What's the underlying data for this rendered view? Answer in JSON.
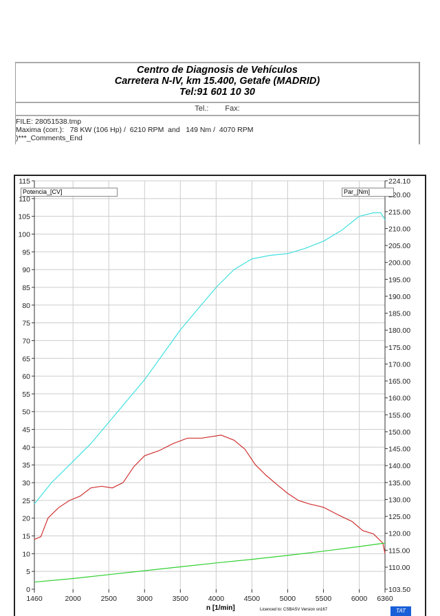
{
  "header": {
    "line1": "Centro de Diagnosis de Vehículos",
    "line2": "Carretera N-IV, km 15.400, Getafe (MADRID)",
    "line3": "Tel:91 601 10 30",
    "tel_label": "Tel.:",
    "fax_label": "Fax:",
    "file": "FILE: 28051538.tmp",
    "maxima": "Maxima (corr.):   78 KW (106 Hp) /  6210 RPM  and   149 Nm /  4070 RPM",
    "comments": ")***_Comments_End"
  },
  "footer": {
    "license": "Licenced to: CSBASV   Version sn167",
    "logo": "TAT"
  },
  "chart_data": {
    "type": "line",
    "xlabel": "n  [1/min]",
    "ylabel_left": "Potencia_[CV]",
    "ylabel_right": "Par_[Nm]",
    "xlim": [
      1460,
      6360
    ],
    "ylim_left": [
      0,
      115
    ],
    "ylim_right": [
      103.5,
      224.1
    ],
    "x_ticks": [
      "1460",
      "2000",
      "2500",
      "3000",
      "3500",
      "4000",
      "4500",
      "5000",
      "5500",
      "6000",
      "6360"
    ],
    "y_left_ticks": [
      "0",
      "5",
      "10",
      "15",
      "20",
      "25",
      "30",
      "35",
      "40",
      "45",
      "50",
      "55",
      "60",
      "65",
      "70",
      "75",
      "80",
      "85",
      "90",
      "95",
      "100",
      "105",
      "110",
      "115"
    ],
    "y_right_ticks": [
      "103.50",
      "110.00",
      "115.00",
      "120.00",
      "125.00",
      "130.00",
      "135.00",
      "140.00",
      "145.00",
      "150.00",
      "155.00",
      "160.00",
      "165.00",
      "170.00",
      "175.00",
      "180.00",
      "185.00",
      "190.00",
      "195.00",
      "200.00",
      "205.00",
      "210.00",
      "215.00",
      "220.00",
      "224.10"
    ],
    "grid": true,
    "series": [
      {
        "name": "Potencia_[CV]",
        "axis": "left",
        "color": "#40e0e0",
        "x": [
          1460,
          1700,
          2000,
          2250,
          2500,
          2750,
          3000,
          3250,
          3500,
          3750,
          4000,
          4250,
          4500,
          4750,
          5000,
          5250,
          5500,
          5750,
          6000,
          6200,
          6300,
          6360
        ],
        "y": [
          24,
          30,
          36,
          41,
          47,
          53,
          59,
          66,
          73,
          79,
          85,
          90,
          93,
          94,
          94.5,
          96,
          98,
          101,
          105,
          106,
          106,
          104
        ]
      },
      {
        "name": "Par_[Nm]",
        "axis": "right",
        "color": "#d03030",
        "x": [
          1460,
          1550,
          1650,
          1800,
          1950,
          2100,
          2250,
          2400,
          2550,
          2700,
          2850,
          3000,
          3200,
          3400,
          3600,
          3800,
          4070,
          4250,
          4400,
          4550,
          4700,
          4850,
          5000,
          5150,
          5300,
          5500,
          5700,
          5900,
          6050,
          6200,
          6330,
          6360
        ],
        "y": [
          118.2,
          119,
          124.5,
          127.6,
          129.7,
          131,
          133.4,
          133.9,
          133.4,
          135,
          139.7,
          142.9,
          144.4,
          146.5,
          148.1,
          148.1,
          149,
          147.5,
          144.9,
          140.2,
          137.1,
          134.4,
          131.8,
          129.7,
          128.7,
          127.7,
          125.5,
          123.5,
          120.8,
          119.8,
          117.1,
          114
        ]
      },
      {
        "name": "Green",
        "axis": "left",
        "color": "#30d030",
        "x": [
          1460,
          2000,
          2500,
          3000,
          3500,
          4000,
          4500,
          5000,
          5500,
          6000,
          6360
        ],
        "y": [
          2,
          3,
          4.1,
          5.2,
          6.3,
          7.4,
          8.4,
          9.5,
          10.7,
          12,
          13
        ]
      }
    ]
  }
}
